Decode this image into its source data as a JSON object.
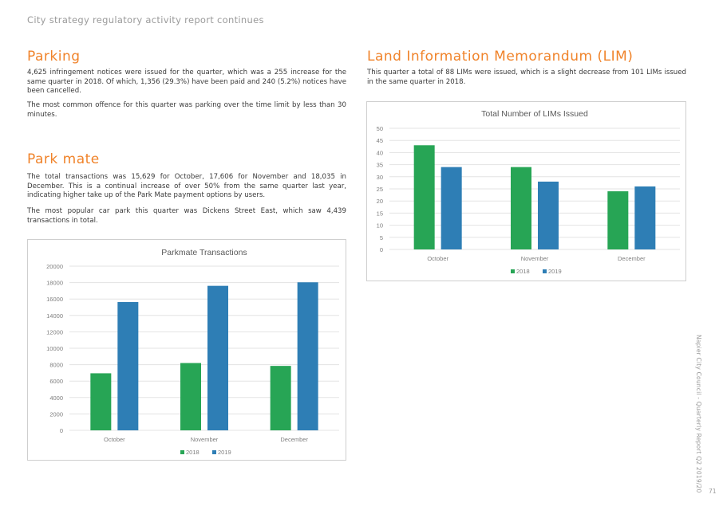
{
  "running_head": "City strategy regulatory activity report continues",
  "parking": {
    "title": "Parking",
    "p1": "4,625 infringement notices were issued for the quarter, which was a 255 increase for the same quarter in 2018. Of which, 1,356 (29.3%) have been paid and 240 (5.2%) notices have been cancelled.",
    "p2": "The most common offence for this quarter was parking over the time limit by less than 30 minutes."
  },
  "parkmate": {
    "title": "Park mate",
    "p1": "The total transactions was 15,629 for October, 17,606 for November and 18,035 in December. This is a continual increase of over 50% from the same quarter last year, indicating higher take up of the Park Mate payment options by users.",
    "p2": "The most popular car park this quarter was Dickens Street East, which saw 4,439 transactions in total."
  },
  "lim": {
    "title": "Land Information Memorandum (LIM)",
    "p1": "This quarter a total of 88 LIMs were issued, which is a slight decrease from 101 LIMs issued in the same quarter in 2018."
  },
  "footer": {
    "side_text": "Napier City Council - Quarterly Report Q2 2019/20",
    "page_number": "71"
  },
  "colors": {
    "accent": "#f0832a",
    "series_2018": "#27a555",
    "series_2019": "#2e7eb5"
  },
  "chart_data": [
    {
      "id": "parkmate",
      "type": "bar",
      "title": "Parkmate Transactions",
      "categories": [
        "October",
        "November",
        "December"
      ],
      "series": [
        {
          "name": "2018",
          "values": [
            6950,
            8200,
            7850
          ]
        },
        {
          "name": "2019",
          "values": [
            15629,
            17606,
            18035
          ]
        }
      ],
      "ylim": [
        0,
        20000
      ],
      "yticks": [
        0,
        2000,
        4000,
        6000,
        8000,
        10000,
        12000,
        14000,
        16000,
        18000,
        20000
      ],
      "grid": true,
      "legend": "bottom"
    },
    {
      "id": "lim",
      "type": "bar",
      "title": "Total Number of LIMs Issued",
      "categories": [
        "October",
        "November",
        "December"
      ],
      "series": [
        {
          "name": "2018",
          "values": [
            43,
            34,
            24
          ]
        },
        {
          "name": "2019",
          "values": [
            34,
            28,
            26
          ]
        }
      ],
      "ylim": [
        0,
        50
      ],
      "yticks": [
        0,
        5,
        10,
        15,
        20,
        25,
        30,
        35,
        40,
        45,
        50
      ],
      "grid": true,
      "legend": "bottom"
    }
  ]
}
